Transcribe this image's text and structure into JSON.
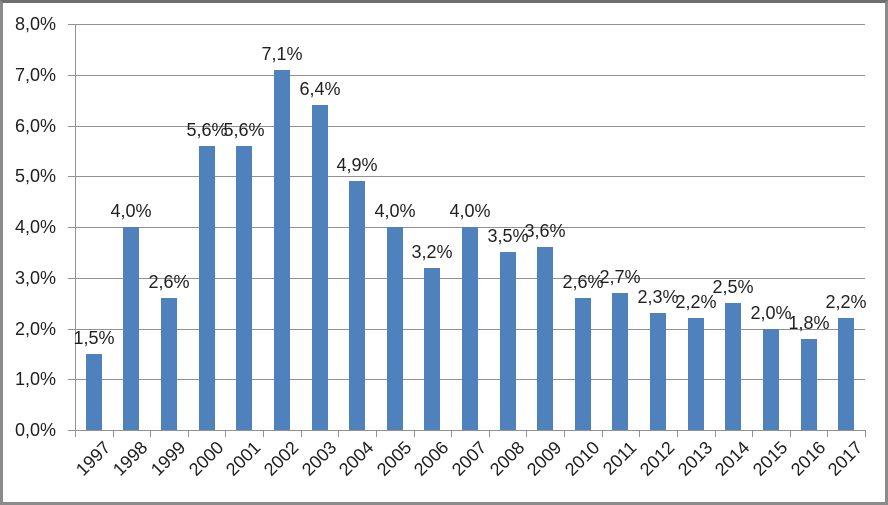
{
  "chart_data": {
    "type": "bar",
    "title": "",
    "xlabel": "",
    "ylabel": "",
    "categories": [
      "1997",
      "1998",
      "1999",
      "2000",
      "2001",
      "2002",
      "2003",
      "2004",
      "2005",
      "2006",
      "2007",
      "2008",
      "2009",
      "2010",
      "2011",
      "2012",
      "2013",
      "2014",
      "2015",
      "2016",
      "2017"
    ],
    "values": [
      1.5,
      4.0,
      2.6,
      5.6,
      5.6,
      7.1,
      6.4,
      4.9,
      4.0,
      3.2,
      4.0,
      3.5,
      3.6,
      2.6,
      2.7,
      2.3,
      2.2,
      2.5,
      2.0,
      1.8,
      2.2
    ],
    "data_labels": [
      "1,5%",
      "4,0%",
      "2,6%",
      "5,6%",
      "5,6%",
      "7,1%",
      "6,4%",
      "4,9%",
      "4,0%",
      "3,2%",
      "4,0%",
      "3,5%",
      "3,6%",
      "2,6%",
      "2,7%",
      "2,3%",
      "2,2%",
      "2,5%",
      "2,0%",
      "1,8%",
      "2,2%"
    ],
    "ylim": [
      0,
      8
    ],
    "ytick_step": 1,
    "ytick_labels": [
      "0,0%",
      "1,0%",
      "2,0%",
      "3,0%",
      "4,0%",
      "5,0%",
      "6,0%",
      "7,0%",
      "8,0%"
    ],
    "grid": true,
    "legend": false,
    "decimal_separator": ",",
    "x_label_rotation_deg": 45,
    "colors": {
      "bar": "#4F81BD",
      "gridline": "#919191",
      "axis": "#919191",
      "text": "#1f1f1f",
      "frame_border": "#8b8b8b",
      "background": "#ffffff"
    }
  }
}
